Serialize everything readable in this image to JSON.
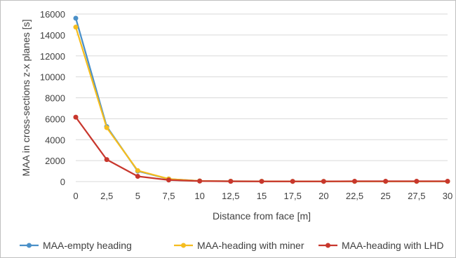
{
  "chart_data": {
    "type": "line",
    "title": "",
    "xlabel": "Distance from face [m]",
    "ylabel": "MAA in cross-sections z-x planes [s]",
    "categories": [
      "0",
      "2,5",
      "5",
      "7,5",
      "10",
      "12,5",
      "15",
      "17,5",
      "20",
      "22,5",
      "25",
      "27,5",
      "30"
    ],
    "y_ticks": [
      "0",
      "2000",
      "4000",
      "6000",
      "8000",
      "10000",
      "12000",
      "14000",
      "16000"
    ],
    "ylim": [
      0,
      16000
    ],
    "grid": "horizontal",
    "legend_position": "bottom",
    "series": [
      {
        "name": "MAA-empty heading",
        "color": "#4a90c8",
        "values": [
          15600,
          5250,
          1000,
          250,
          60,
          30,
          25,
          20,
          20,
          20,
          20,
          20,
          20
        ]
      },
      {
        "name": "MAA-heading with miner",
        "color": "#f5bd1f",
        "values": [
          14750,
          5150,
          1050,
          250,
          60,
          30,
          25,
          20,
          20,
          20,
          20,
          20,
          20
        ]
      },
      {
        "name": "MAA-heading with LHD",
        "color": "#c8372d",
        "values": [
          6150,
          2100,
          500,
          150,
          50,
          25,
          20,
          20,
          20,
          30,
          30,
          30,
          30
        ]
      }
    ]
  }
}
